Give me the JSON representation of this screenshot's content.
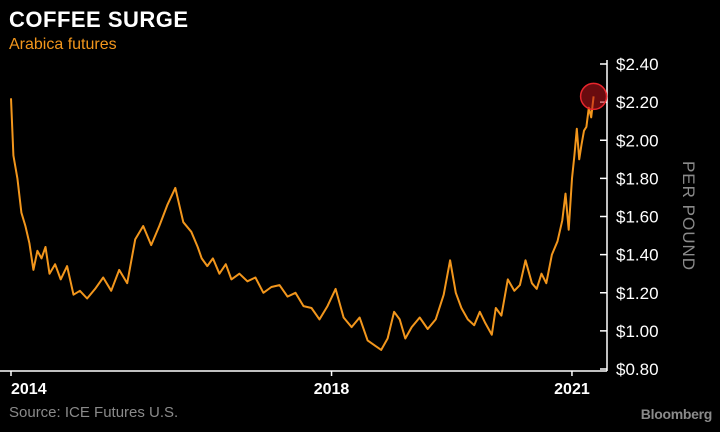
{
  "chart_data": {
    "type": "line",
    "title": "COFFEE SURGE",
    "subtitle": "Arabica futures",
    "ylabel": "PER POUND",
    "source": "Source: ICE Futures U.S.",
    "brand": "Bloomberg",
    "x_ticks": [
      "2014",
      "2018",
      "2021"
    ],
    "y_ticks": [
      "$0.80",
      "$1.00",
      "$1.20",
      "$1.40",
      "$1.60",
      "$1.80",
      "$2.00",
      "$2.20",
      "$2.40"
    ],
    "y_tick_values": [
      0.8,
      1.0,
      1.2,
      1.4,
      1.6,
      1.8,
      2.0,
      2.2,
      2.4
    ],
    "ylim": [
      0.8,
      2.4
    ],
    "xlim": [
      2014.0,
      2021.35
    ],
    "grid": false,
    "line_color": "#f2961c",
    "highlight_color": "#c0141b",
    "series": [
      {
        "x": [
          2014.0,
          2014.03,
          2014.08,
          2014.13,
          2014.18,
          2014.23,
          2014.28,
          2014.33,
          2014.38,
          2014.43,
          2014.48,
          2014.55,
          2014.62,
          2014.7,
          2014.78,
          2014.86,
          2014.95,
          2015.05,
          2015.15,
          2015.25,
          2015.35,
          2015.45,
          2015.55,
          2015.65,
          2015.75,
          2015.85,
          2015.95,
          2016.05,
          2016.15,
          2016.25,
          2016.33,
          2016.38,
          2016.45,
          2016.52,
          2016.6,
          2016.68,
          2016.75,
          2016.85,
          2016.95,
          2017.05,
          2017.15,
          2017.25,
          2017.35,
          2017.45,
          2017.55,
          2017.65,
          2017.75,
          2017.85,
          2017.95,
          2018.05,
          2018.15,
          2018.25,
          2018.35,
          2018.45,
          2018.55,
          2018.62,
          2018.7,
          2018.78,
          2018.85,
          2018.92,
          2019.0,
          2019.1,
          2019.2,
          2019.3,
          2019.4,
          2019.48,
          2019.55,
          2019.62,
          2019.7,
          2019.78,
          2019.85,
          2019.92,
          2020.0,
          2020.05,
          2020.12,
          2020.2,
          2020.28,
          2020.35,
          2020.42,
          2020.5,
          2020.56,
          2020.62,
          2020.68,
          2020.75,
          2020.82,
          2020.88,
          2020.92,
          2020.96,
          2021.0,
          2021.03,
          2021.06,
          2021.09,
          2021.12,
          2021.15,
          2021.18,
          2021.21,
          2021.24,
          2021.27
        ],
        "values": [
          2.22,
          1.92,
          1.8,
          1.62,
          1.55,
          1.46,
          1.32,
          1.42,
          1.38,
          1.44,
          1.3,
          1.35,
          1.27,
          1.34,
          1.19,
          1.21,
          1.17,
          1.22,
          1.28,
          1.21,
          1.32,
          1.25,
          1.48,
          1.55,
          1.45,
          1.55,
          1.66,
          1.75,
          1.57,
          1.52,
          1.44,
          1.38,
          1.34,
          1.38,
          1.3,
          1.35,
          1.27,
          1.3,
          1.26,
          1.28,
          1.2,
          1.23,
          1.24,
          1.18,
          1.2,
          1.13,
          1.12,
          1.06,
          1.13,
          1.22,
          1.07,
          1.02,
          1.07,
          0.95,
          0.92,
          0.9,
          0.96,
          1.1,
          1.06,
          0.96,
          1.02,
          1.07,
          1.01,
          1.06,
          1.19,
          1.37,
          1.2,
          1.12,
          1.06,
          1.03,
          1.1,
          1.04,
          0.98,
          1.12,
          1.08,
          1.27,
          1.21,
          1.24,
          1.37,
          1.25,
          1.22,
          1.3,
          1.25,
          1.4,
          1.47,
          1.58,
          1.72,
          1.53,
          1.8,
          1.92,
          2.06,
          1.9,
          1.98,
          2.05,
          2.07,
          2.17,
          2.12,
          2.23
        ]
      }
    ],
    "highlight_point": {
      "x": 2021.27,
      "y": 2.23
    }
  }
}
